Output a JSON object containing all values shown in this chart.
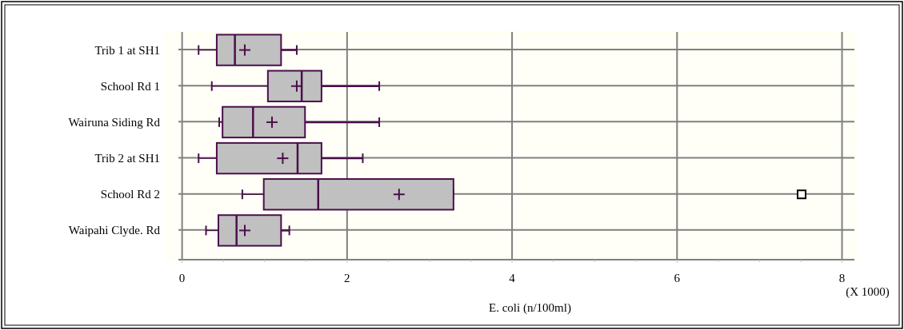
{
  "chart_data": {
    "type": "box",
    "orientation": "horizontal",
    "xlabel": "E. coli (n/100ml)",
    "annotations": [
      "(X 1000)"
    ],
    "categories": [
      "Trib 1 at SH1",
      "School Rd 1",
      "Wairuna Siding Rd",
      "Trib 2 at SH1",
      "School Rd 2",
      "Waipahi Clyde. Rd"
    ],
    "series": [
      {
        "color": "#c0c0c0",
        "boxes": [
          {
            "low": 0.2,
            "q1": 0.42,
            "median": 0.64,
            "q3": 1.2,
            "high": 1.39,
            "mean": 0.76
          },
          {
            "low": 0.36,
            "q1": 1.04,
            "median": 1.45,
            "q3": 1.69,
            "high": 2.39,
            "mean": 1.39
          },
          {
            "low": 0.45,
            "q1": 0.49,
            "median": 0.86,
            "q3": 1.49,
            "high": 2.39,
            "mean": 1.09
          },
          {
            "low": 0.2,
            "q1": 0.42,
            "median": 1.4,
            "q3": 1.69,
            "high": 2.19,
            "mean": 1.22
          },
          {
            "low": 0.73,
            "q1": 0.99,
            "median": 1.65,
            "q3": 3.29,
            "high": 3.29,
            "mean": 2.63,
            "outliers": [
              7.51
            ]
          },
          {
            "low": 0.29,
            "q1": 0.44,
            "median": 0.66,
            "q3": 1.2,
            "high": 1.3,
            "mean": 0.76
          }
        ]
      }
    ],
    "xlim": [
      -0.2,
      8.15
    ],
    "xticks": [
      0,
      {
        "value": 0.5,
        "label": null
      },
      {
        "value": 1,
        "label": null
      },
      {
        "value": 1.5,
        "label": null
      },
      2,
      {
        "value": 2.5,
        "label": null
      },
      {
        "value": 3,
        "label": null
      },
      {
        "value": 3.5,
        "label": null
      },
      4,
      {
        "value": 4.5,
        "label": null
      },
      {
        "value": 5,
        "label": null
      },
      {
        "value": 5.5,
        "label": null
      },
      6,
      {
        "value": 6.5,
        "label": null
      },
      {
        "value": 7,
        "label": null
      },
      {
        "value": 7.5,
        "label": null
      },
      8
    ],
    "grid": true
  }
}
